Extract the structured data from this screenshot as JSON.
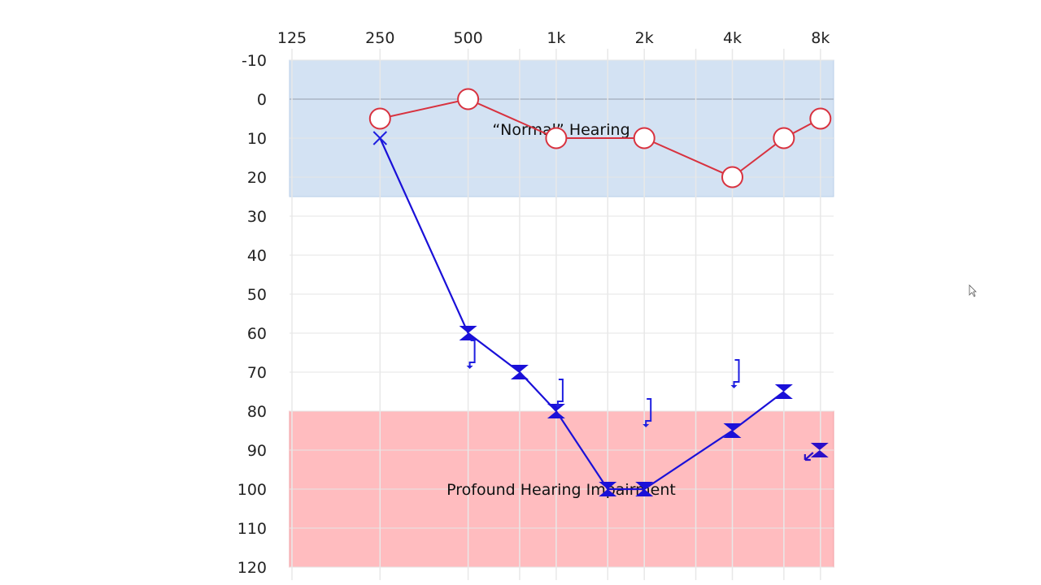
{
  "chart_data": {
    "type": "line",
    "title": "",
    "xlabel": "",
    "ylabel": "",
    "x_scale": "log2",
    "x_ticks": [
      125,
      250,
      500,
      1000,
      2000,
      4000,
      8000
    ],
    "x_tick_labels": [
      "125",
      "250",
      "500",
      "1k",
      "2k",
      "4k",
      "8k"
    ],
    "x_minor_gridlines": [
      750,
      1500,
      3000,
      6000
    ],
    "y_ticks": [
      -10,
      0,
      10,
      20,
      30,
      40,
      50,
      60,
      70,
      80,
      90,
      100,
      110,
      120
    ],
    "ylim": [
      -10,
      120
    ],
    "y_inverted": true,
    "grid": true,
    "bands": [
      {
        "label": "“Normal” Hearing",
        "from": -10,
        "to": 25,
        "color": "#d3e2f3"
      },
      {
        "label": "Profound Hearing Impairment",
        "from": 80,
        "to": 120,
        "color": "#ffbcbf"
      }
    ],
    "series": [
      {
        "marker": "circle",
        "color": "#d8323f",
        "connected": true,
        "x": [
          250,
          500,
          1000,
          2000,
          4000,
          6000,
          8000
        ],
        "y": [
          5,
          0,
          10,
          10,
          20,
          10,
          5
        ]
      },
      {
        "marker": "x",
        "color": "#1f1fe0",
        "connected": true,
        "x": [
          250
        ],
        "y": [
          10
        ]
      },
      {
        "marker": "hourglass",
        "color": "#1a10d8",
        "connected": true,
        "x": [
          500,
          750,
          1000,
          1500,
          2000,
          4000,
          6000
        ],
        "y": [
          60,
          70,
          80,
          100,
          100,
          85,
          75
        ]
      },
      {
        "marker": "hourglass-no-response",
        "color": "#2a0fc8",
        "connected": false,
        "x": [
          8000
        ],
        "y": [
          90
        ]
      },
      {
        "marker": "bracket-no-response",
        "color": "#1f1fe0",
        "connected": false,
        "x": [
          500,
          1000,
          2000,
          4000
        ],
        "y": [
          65,
          75,
          80,
          70
        ]
      }
    ]
  }
}
